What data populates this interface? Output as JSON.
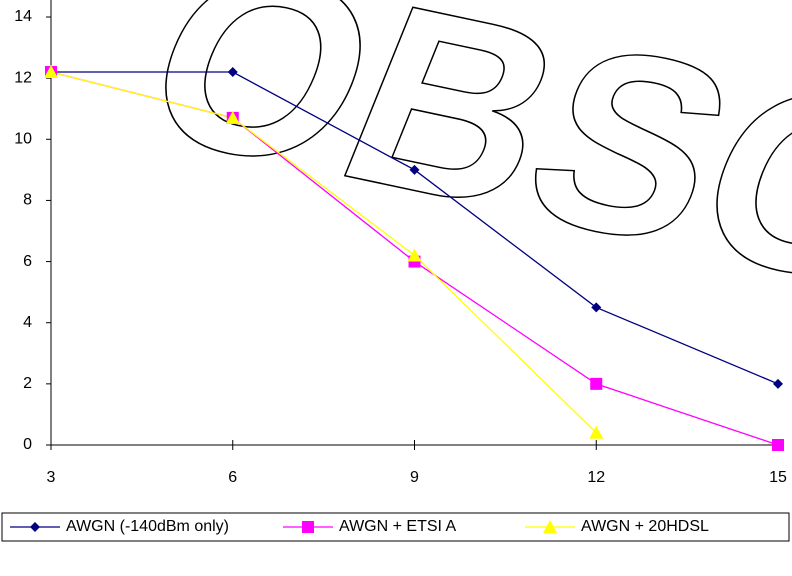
{
  "chart_data": {
    "type": "line",
    "watermark": "OBSOLETE",
    "x": [
      3,
      6,
      9,
      12,
      15
    ],
    "series": [
      {
        "name": "AWGN (-140dBm only)",
        "color": "#000080",
        "marker": "diamond",
        "values": [
          12.2,
          12.2,
          9.0,
          4.5,
          2.0
        ]
      },
      {
        "name": "AWGN + ETSI A",
        "color": "#ff00ff",
        "marker": "square",
        "values": [
          12.2,
          10.7,
          6.0,
          2.0,
          0.0
        ]
      },
      {
        "name": "AWGN + 20HDSL",
        "color": "#ffff00",
        "marker": "triangle",
        "values": [
          12.2,
          10.7,
          6.2,
          0.4,
          null
        ]
      }
    ],
    "xlim": [
      3,
      15
    ],
    "xticks": [
      3,
      6,
      9,
      12,
      15
    ],
    "ylim": [
      0,
      14
    ],
    "yticks": [
      0,
      2,
      4,
      6,
      8,
      10,
      12,
      14
    ],
    "grid": false,
    "legend": "bottom"
  }
}
